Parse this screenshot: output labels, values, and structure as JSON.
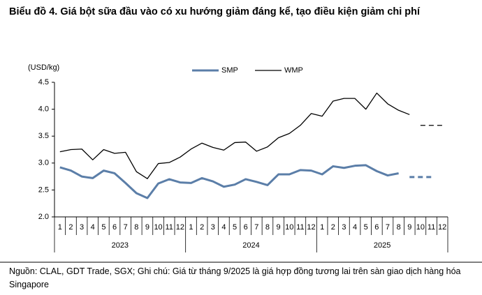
{
  "chart_data": {
    "type": "line",
    "title": "Biểu đồ 4. Giá bột sữa đầu vào có xu hướng giảm đáng kể, tạo điều kiện giảm chi phí",
    "y_label": "(USD/kg)",
    "categories": [
      "1",
      "2",
      "3",
      "4",
      "5",
      "6",
      "7",
      "8",
      "9",
      "10",
      "11",
      "12",
      "1",
      "2",
      "3",
      "4",
      "5",
      "6",
      "7",
      "8",
      "9",
      "10",
      "11",
      "12",
      "1",
      "2",
      "3",
      "4",
      "5",
      "6",
      "7",
      "8",
      "9",
      "10",
      "11",
      "12"
    ],
    "x_groups": [
      "2023",
      "2024",
      "2025"
    ],
    "ylim": [
      2,
      4.5
    ],
    "yticks": [
      {
        "value": 2,
        "label": "2.0"
      },
      2.5,
      {
        "value": 3,
        "label": "3.0"
      },
      3.5,
      {
        "value": 4,
        "label": "4.0"
      },
      4.5
    ],
    "grid": false,
    "legend": "top",
    "series": [
      {
        "name": "SMP",
        "color": "#5b7ea8",
        "width": 3,
        "values": [
          2.92,
          2.86,
          2.75,
          2.72,
          2.86,
          2.81,
          2.63,
          2.44,
          2.35,
          2.62,
          2.7,
          2.64,
          2.63,
          2.72,
          2.66,
          2.56,
          2.6,
          2.7,
          2.65,
          2.59,
          2.79,
          2.79,
          2.87,
          2.86,
          2.79,
          2.94,
          2.91,
          2.95,
          2.96,
          2.85,
          2.77,
          2.81,
          null,
          null,
          null,
          null
        ],
        "future_values": [
          null,
          null,
          null,
          null,
          null,
          null,
          null,
          null,
          null,
          null,
          null,
          null,
          null,
          null,
          null,
          null,
          null,
          null,
          null,
          null,
          null,
          null,
          null,
          null,
          null,
          null,
          null,
          null,
          null,
          null,
          null,
          null,
          2.74,
          2.74,
          2.74,
          null
        ]
      },
      {
        "name": "WMP",
        "color": "#000000",
        "width": 1.3,
        "values": [
          3.21,
          3.25,
          3.26,
          3.06,
          3.25,
          3.18,
          3.2,
          2.84,
          2.71,
          2.99,
          3.01,
          3.11,
          3.26,
          3.37,
          3.29,
          3.24,
          3.38,
          3.39,
          3.22,
          3.3,
          3.47,
          3.55,
          3.7,
          3.92,
          3.87,
          4.15,
          4.2,
          4.2,
          4.0,
          4.3,
          4.1,
          3.98,
          3.9,
          null,
          null,
          null
        ],
        "future_values": [
          null,
          null,
          null,
          null,
          null,
          null,
          null,
          null,
          null,
          null,
          null,
          null,
          null,
          null,
          null,
          null,
          null,
          null,
          null,
          null,
          null,
          null,
          null,
          null,
          null,
          null,
          null,
          null,
          null,
          null,
          null,
          null,
          null,
          3.7,
          3.7,
          3.7
        ]
      }
    ],
    "source": "Nguồn: CLAL, GDT Trade, SGX; Ghi chú: Giá từ tháng 9/2025 là giá hợp đồng tương lai trên sàn giao dịch hàng hóa Singapore"
  }
}
